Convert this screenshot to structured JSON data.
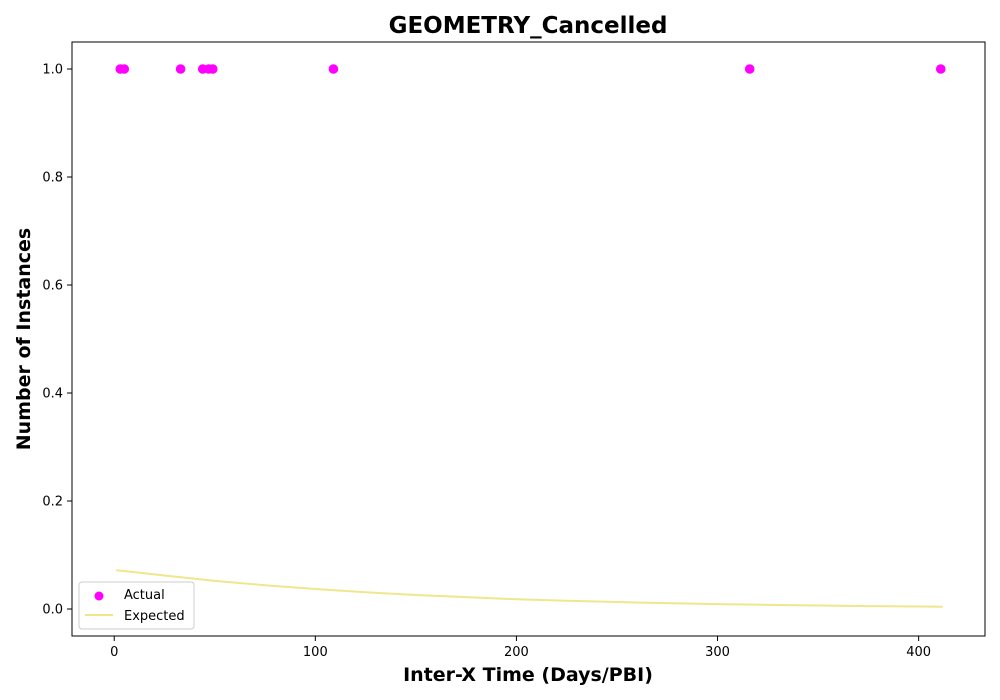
{
  "chart_data": {
    "type": "scatter",
    "title": "GEOMETRY_Cancelled",
    "xlabel": "Inter-X Time (Days/PBI)",
    "ylabel": "Number of Instances",
    "xlim": [
      -21,
      433
    ],
    "ylim": [
      -0.05,
      1.05
    ],
    "xticks": [
      0,
      100,
      200,
      300,
      400
    ],
    "yticks": [
      0.0,
      0.2,
      0.4,
      0.6,
      0.8,
      1.0
    ],
    "xtick_labels": [
      "0",
      "100",
      "200",
      "300",
      "400"
    ],
    "ytick_labels": [
      "0.0",
      "0.2",
      "0.4",
      "0.6",
      "0.8",
      "1.0"
    ],
    "grid": false,
    "legend": {
      "placement": "lower-left",
      "entries": [
        "Actual",
        "Expected"
      ]
    },
    "series": [
      {
        "name": "Actual",
        "kind": "scatter",
        "color": "#ff00ff",
        "x": [
          3,
          5,
          33,
          44,
          47,
          49,
          109,
          316,
          411
        ],
        "y": [
          1,
          1,
          1,
          1,
          1,
          1,
          1,
          1,
          1
        ]
      },
      {
        "name": "Expected",
        "kind": "line",
        "color": "#f0e68c",
        "x": [
          1,
          25,
          50,
          75,
          100,
          125,
          150,
          175,
          200,
          225,
          250,
          275,
          300,
          325,
          350,
          375,
          400,
          412
        ],
        "y": [
          0.072,
          0.062,
          0.052,
          0.044,
          0.037,
          0.031,
          0.026,
          0.022,
          0.018,
          0.0153,
          0.0129,
          0.0108,
          0.0091,
          0.0077,
          0.0065,
          0.0054,
          0.0046,
          0.0042
        ]
      }
    ]
  }
}
